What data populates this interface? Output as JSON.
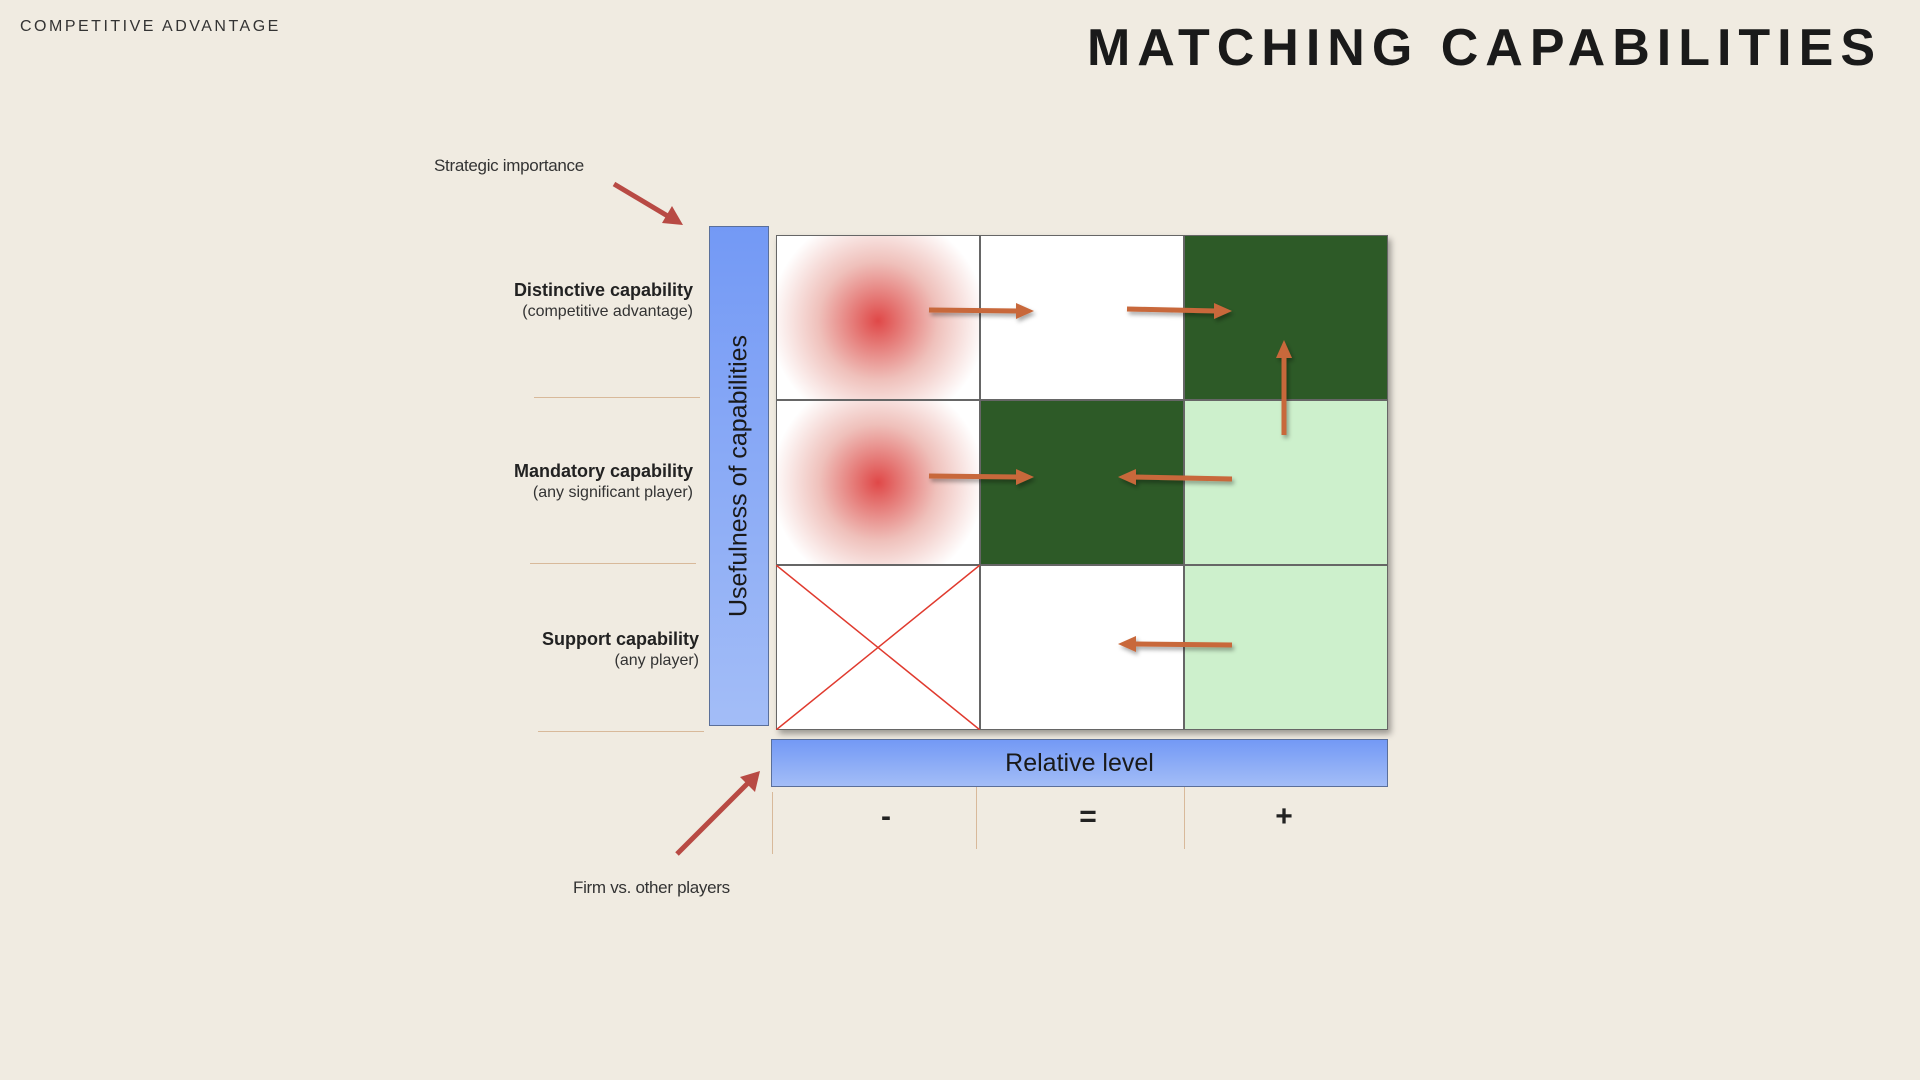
{
  "header": {
    "section": "COMPETITIVE ADVANTAGE",
    "title": "MATCHING CAPABILITIES"
  },
  "annotations": {
    "y_pointer": "Strategic importance",
    "x_pointer": "Firm vs. other players"
  },
  "axes": {
    "y_label": "Usefulness of capabilities",
    "x_label": "Relative level",
    "x_marks": [
      "-",
      "=",
      "+"
    ]
  },
  "rows": [
    {
      "title": "Distinctive capability",
      "subtitle": "(competitive advantage)"
    },
    {
      "title": "Mandatory  capability",
      "subtitle": "(any significant player)"
    },
    {
      "title": "Support capability",
      "subtitle": "(any player)"
    }
  ],
  "colors": {
    "dark_green": "#2d5a27",
    "light_green": "#cdf0cc",
    "red_glow": "#e04848",
    "arrow": "#c8683a",
    "pointer_arrow": "#b84a44",
    "axis_blue": "#7399f5"
  },
  "cells": [
    [
      "red-glow",
      "white",
      "dark-green"
    ],
    [
      "red-glow",
      "dark-green",
      "light-green"
    ],
    [
      "crossed",
      "white",
      "light-green"
    ]
  ]
}
